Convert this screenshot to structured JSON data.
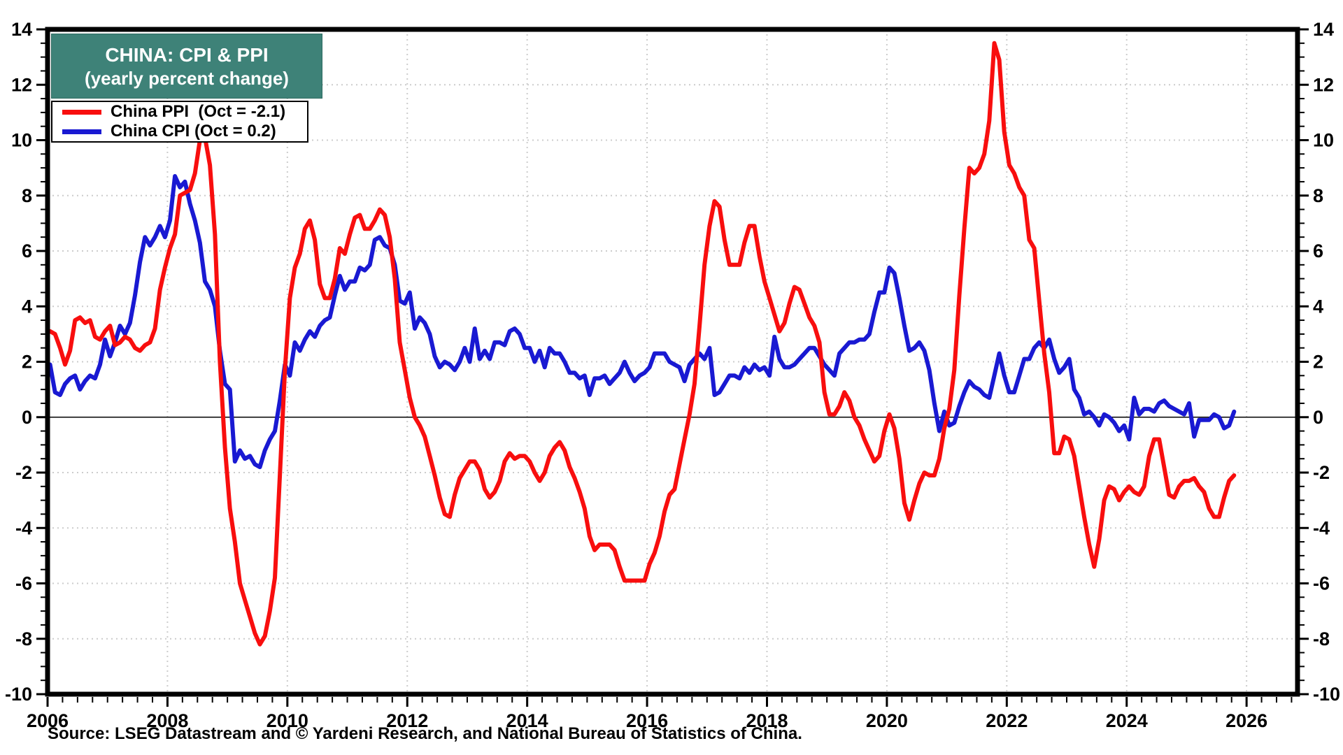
{
  "header": {
    "title_line1": "CHINA: CPI & PPI",
    "title_line2": "(yearly percent change)"
  },
  "legend": [
    {
      "label": "China PPI  (Oct = -2.1)",
      "color": "#f80e0e"
    },
    {
      "label": "China CPI (Oct = 0.2)",
      "color": "#1919d2"
    }
  ],
  "source_line": "Source: LSEG Datastream and © Yardeni Research, and National Bureau of Statistics of China.",
  "colors": {
    "title_bg": "#3e8278",
    "grid": "#cccccc",
    "axis": "#000000",
    "zero_line": "#000000",
    "ppi_red": "#f80e0e",
    "cpi_blue": "#1919d2"
  },
  "chart_data": {
    "type": "line",
    "title": "CHINA: CPI & PPI",
    "subtitle": "(yearly percent change)",
    "xlabel": "",
    "ylabel": "",
    "legend_position": "top-left",
    "grid": true,
    "x_start": {
      "year": 2006,
      "month": 1
    },
    "x_end": {
      "year": 2025,
      "month": 10
    },
    "x_axis": {
      "min": 2006,
      "max": 2026.85,
      "label_years": [
        2006,
        2008,
        2010,
        2012,
        2014,
        2016,
        2018,
        2020,
        2022,
        2024,
        2026
      ],
      "gridline_years": [
        2008,
        2010,
        2012,
        2014,
        2016,
        2018,
        2020,
        2022,
        2024,
        2026
      ],
      "major_tick_step_years": 2,
      "minor_tick_step_years": 0.25
    },
    "y_axis": {
      "min": -10,
      "max": 14,
      "major_step": 2,
      "minor_step": 0.5,
      "tick_labels": [
        -10,
        -8,
        -6,
        -4,
        -2,
        0,
        2,
        4,
        6,
        8,
        10,
        12,
        14
      ],
      "zero_line": true,
      "labels_both_sides": true
    },
    "series": [
      {
        "name": "China PPI",
        "latest_label": "Oct = -2.1",
        "color": "#f80e0e",
        "values": [
          3.1,
          3.0,
          2.5,
          1.9,
          2.4,
          3.5,
          3.6,
          3.4,
          3.5,
          2.9,
          2.8,
          3.1,
          3.3,
          2.6,
          2.7,
          2.9,
          2.8,
          2.5,
          2.4,
          2.6,
          2.7,
          3.2,
          4.6,
          5.4,
          6.1,
          6.6,
          8.0,
          8.1,
          8.2,
          8.8,
          10.0,
          10.1,
          9.1,
          6.6,
          2.0,
          -1.1,
          -3.3,
          -4.5,
          -6.0,
          -6.6,
          -7.2,
          -7.8,
          -8.2,
          -7.9,
          -7.0,
          -5.8,
          -2.1,
          1.7,
          4.3,
          5.4,
          5.9,
          6.8,
          7.1,
          6.4,
          4.8,
          4.3,
          4.3,
          5.0,
          6.1,
          5.9,
          6.6,
          7.2,
          7.3,
          6.8,
          6.8,
          7.1,
          7.5,
          7.3,
          6.5,
          5.0,
          2.7,
          1.7,
          0.7,
          0.0,
          -0.3,
          -0.7,
          -1.4,
          -2.1,
          -2.9,
          -3.5,
          -3.6,
          -2.8,
          -2.2,
          -1.9,
          -1.6,
          -1.6,
          -1.9,
          -2.6,
          -2.9,
          -2.7,
          -2.3,
          -1.6,
          -1.3,
          -1.5,
          -1.4,
          -1.4,
          -1.6,
          -2.0,
          -2.3,
          -2.0,
          -1.4,
          -1.1,
          -0.9,
          -1.2,
          -1.8,
          -2.2,
          -2.7,
          -3.3,
          -4.3,
          -4.8,
          -4.6,
          -4.6,
          -4.6,
          -4.8,
          -5.4,
          -5.9,
          -5.9,
          -5.9,
          -5.9,
          -5.9,
          -5.3,
          -4.9,
          -4.3,
          -3.4,
          -2.8,
          -2.6,
          -1.7,
          -0.8,
          0.1,
          1.2,
          3.3,
          5.5,
          6.9,
          7.8,
          7.6,
          6.4,
          5.5,
          5.5,
          5.5,
          6.3,
          6.9,
          6.9,
          5.8,
          4.9,
          4.3,
          3.7,
          3.1,
          3.4,
          4.1,
          4.7,
          4.6,
          4.1,
          3.6,
          3.3,
          2.7,
          0.9,
          0.1,
          0.1,
          0.4,
          0.9,
          0.6,
          0.0,
          -0.3,
          -0.8,
          -1.2,
          -1.6,
          -1.4,
          -0.5,
          0.1,
          -0.4,
          -1.5,
          -3.1,
          -3.7,
          -3.0,
          -2.4,
          -2.0,
          -2.1,
          -2.1,
          -1.5,
          -0.4,
          0.3,
          1.7,
          4.4,
          6.8,
          9.0,
          8.8,
          9.0,
          9.5,
          10.7,
          13.5,
          12.9,
          10.3,
          9.1,
          8.8,
          8.3,
          8.0,
          6.4,
          6.1,
          4.2,
          2.3,
          0.9,
          -1.3,
          -1.3,
          -0.7,
          -0.8,
          -1.4,
          -2.5,
          -3.6,
          -4.6,
          -5.4,
          -4.4,
          -3.0,
          -2.5,
          -2.6,
          -3.0,
          -2.7,
          -2.5,
          -2.7,
          -2.8,
          -2.5,
          -1.4,
          -0.8,
          -0.8,
          -1.8,
          -2.8,
          -2.9,
          -2.5,
          -2.3,
          -2.3,
          -2.2,
          -2.5,
          -2.7,
          -3.3,
          -3.6,
          -3.6,
          -2.9,
          -2.3,
          -2.1
        ]
      },
      {
        "name": "China CPI",
        "latest_label": "Oct = 0.2",
        "color": "#1919d2",
        "values": [
          1.9,
          0.9,
          0.8,
          1.2,
          1.4,
          1.5,
          1.0,
          1.3,
          1.5,
          1.4,
          1.9,
          2.8,
          2.2,
          2.7,
          3.3,
          3.0,
          3.4,
          4.4,
          5.6,
          6.5,
          6.2,
          6.5,
          6.9,
          6.5,
          7.1,
          8.7,
          8.3,
          8.5,
          7.7,
          7.1,
          6.3,
          4.9,
          4.6,
          4.0,
          2.4,
          1.2,
          1.0,
          -1.6,
          -1.2,
          -1.5,
          -1.4,
          -1.7,
          -1.8,
          -1.2,
          -0.8,
          -0.5,
          0.6,
          1.9,
          1.5,
          2.7,
          2.4,
          2.8,
          3.1,
          2.9,
          3.3,
          3.5,
          3.6,
          4.4,
          5.1,
          4.6,
          4.9,
          4.9,
          5.4,
          5.3,
          5.5,
          6.4,
          6.5,
          6.2,
          6.1,
          5.5,
          4.2,
          4.1,
          4.5,
          3.2,
          3.6,
          3.4,
          3.0,
          2.2,
          1.8,
          2.0,
          1.9,
          1.7,
          2.0,
          2.5,
          2.0,
          3.2,
          2.1,
          2.4,
          2.1,
          2.7,
          2.7,
          2.6,
          3.1,
          3.2,
          3.0,
          2.5,
          2.5,
          2.0,
          2.4,
          1.8,
          2.5,
          2.3,
          2.3,
          2.0,
          1.6,
          1.6,
          1.4,
          1.5,
          0.8,
          1.4,
          1.4,
          1.5,
          1.2,
          1.4,
          1.6,
          2.0,
          1.6,
          1.3,
          1.5,
          1.6,
          1.8,
          2.3,
          2.3,
          2.3,
          2.0,
          1.9,
          1.8,
          1.3,
          1.9,
          2.1,
          2.3,
          2.1,
          2.5,
          0.8,
          0.9,
          1.2,
          1.5,
          1.5,
          1.4,
          1.8,
          1.6,
          1.9,
          1.7,
          1.8,
          1.5,
          2.9,
          2.1,
          1.8,
          1.8,
          1.9,
          2.1,
          2.3,
          2.5,
          2.5,
          2.2,
          1.9,
          1.7,
          1.5,
          2.3,
          2.5,
          2.7,
          2.7,
          2.8,
          2.8,
          3.0,
          3.8,
          4.5,
          4.5,
          5.4,
          5.2,
          4.3,
          3.3,
          2.4,
          2.5,
          2.7,
          2.4,
          1.7,
          0.5,
          -0.5,
          0.2,
          -0.3,
          -0.2,
          0.4,
          0.9,
          1.3,
          1.1,
          1.0,
          0.8,
          0.7,
          1.5,
          2.3,
          1.5,
          0.9,
          0.9,
          1.5,
          2.1,
          2.1,
          2.5,
          2.7,
          2.5,
          2.8,
          2.1,
          1.6,
          1.8,
          2.1,
          1.0,
          0.7,
          0.1,
          0.2,
          0.0,
          -0.3,
          0.1,
          0.0,
          -0.2,
          -0.5,
          -0.3,
          -0.8,
          0.7,
          0.1,
          0.3,
          0.3,
          0.2,
          0.5,
          0.6,
          0.4,
          0.3,
          0.2,
          0.1,
          0.5,
          -0.7,
          -0.1,
          -0.1,
          -0.1,
          0.1,
          0.0,
          -0.4,
          -0.3,
          0.2
        ]
      }
    ]
  }
}
